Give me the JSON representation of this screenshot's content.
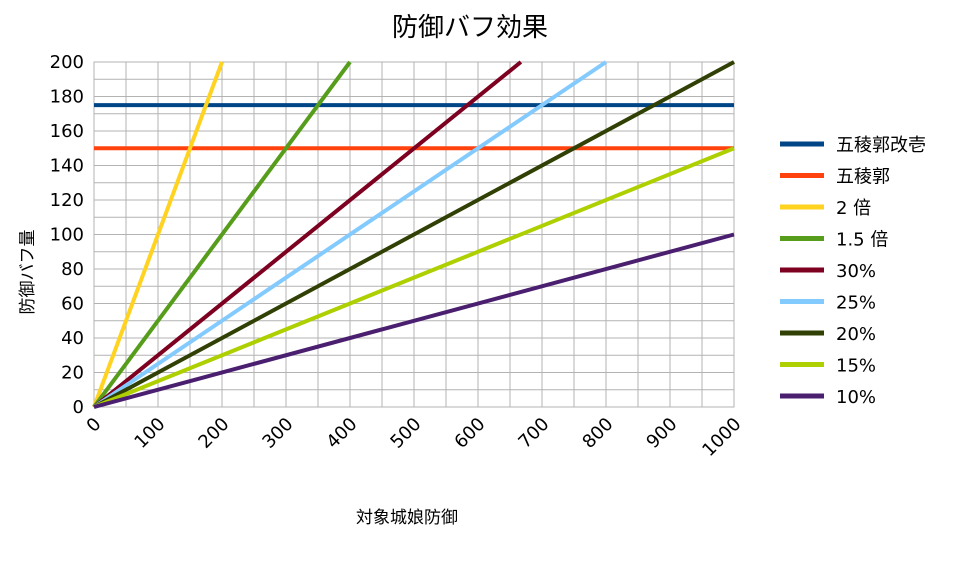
{
  "chart_data": {
    "type": "line",
    "title": "防御バフ効果",
    "xlabel": "対象城娘防御",
    "ylabel": "防御バフ量",
    "xlim": [
      0,
      1000
    ],
    "ylim": [
      0,
      200
    ],
    "x_ticks": [
      0,
      100,
      200,
      300,
      400,
      500,
      600,
      700,
      800,
      900,
      1000
    ],
    "y_ticks": [
      0,
      20,
      40,
      60,
      80,
      100,
      120,
      140,
      160,
      180,
      200
    ],
    "grid": true,
    "legend_position": "right",
    "series": [
      {
        "name": "五稜郭改壱",
        "color": "#004586",
        "x": [
          0,
          1000
        ],
        "y": [
          175,
          175
        ]
      },
      {
        "name": "五稜郭",
        "color": "#ff420e",
        "x": [
          0,
          1000
        ],
        "y": [
          150,
          150
        ]
      },
      {
        "name": "2 倍",
        "color": "#ffd320",
        "x": [
          0,
          200
        ],
        "y": [
          0,
          200
        ]
      },
      {
        "name": "1.5 倍",
        "color": "#579d1c",
        "x": [
          0,
          400
        ],
        "y": [
          0,
          200
        ]
      },
      {
        "name": "30%",
        "color": "#7e0021",
        "x": [
          0,
          667
        ],
        "y": [
          0,
          200
        ]
      },
      {
        "name": "25%",
        "color": "#83caff",
        "x": [
          0,
          800
        ],
        "y": [
          0,
          200
        ]
      },
      {
        "name": "20%",
        "color": "#314004",
        "x": [
          0,
          1000
        ],
        "y": [
          0,
          200
        ]
      },
      {
        "name": "15%",
        "color": "#aecf00",
        "x": [
          0,
          1000
        ],
        "y": [
          0,
          150
        ]
      },
      {
        "name": "10%",
        "color": "#4b1f6f",
        "x": [
          0,
          1000
        ],
        "y": [
          0,
          100
        ]
      }
    ]
  }
}
